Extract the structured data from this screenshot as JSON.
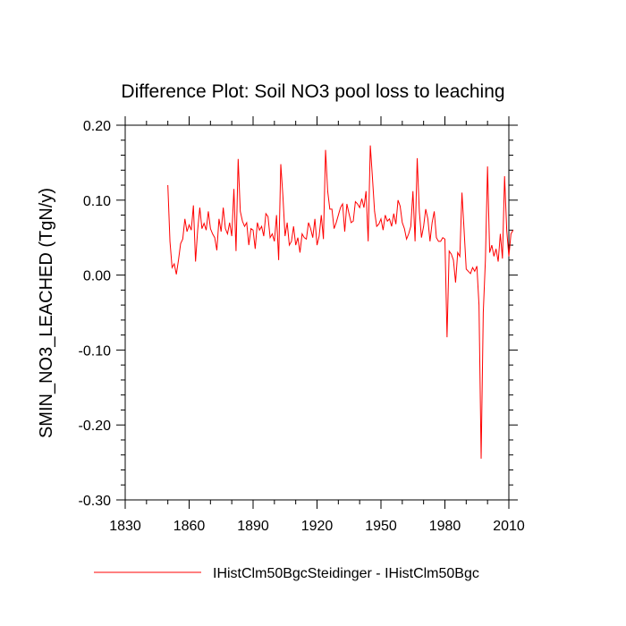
{
  "chart_data": {
    "type": "line",
    "title": "Difference Plot: Soil NO3 pool loss to leaching",
    "xlabel": "",
    "ylabel": "SMIN_NO3_LEACHED  (TgN/y)",
    "xlim": [
      1830,
      2010
    ],
    "ylim": [
      -0.3,
      0.2
    ],
    "x_ticks": [
      1830,
      1860,
      1890,
      1920,
      1950,
      1980,
      2010
    ],
    "x_tick_labels": [
      "1830",
      "1860",
      "1890",
      "1920",
      "1950",
      "1980",
      "2010"
    ],
    "y_ticks": [
      0.2,
      0.1,
      0.0,
      -0.1,
      -0.2,
      -0.3
    ],
    "y_tick_labels": [
      "0.20",
      "0.10",
      "0.00",
      "-0.10",
      "-0.20",
      "-0.30"
    ],
    "grid": false,
    "legend_position": "bottom",
    "series": [
      {
        "name": "IHistClm50BgcSteidinger - IHistClm50Bgc",
        "color": "#ff0000",
        "x_start": 1850,
        "x_step": 1,
        "values": [
          0.12,
          0.045,
          0.01,
          0.015,
          0.001,
          0.02,
          0.042,
          0.048,
          0.075,
          0.058,
          0.067,
          0.06,
          0.093,
          0.018,
          0.06,
          0.09,
          0.062,
          0.069,
          0.06,
          0.085,
          0.062,
          0.055,
          0.05,
          0.033,
          0.075,
          0.058,
          0.09,
          0.062,
          0.055,
          0.07,
          0.052,
          0.115,
          0.032,
          0.155,
          0.085,
          0.072,
          0.065,
          0.07,
          0.04,
          0.062,
          0.06,
          0.035,
          0.07,
          0.06,
          0.065,
          0.052,
          0.082,
          0.078,
          0.05,
          0.055,
          0.045,
          0.08,
          0.02,
          0.148,
          0.105,
          0.052,
          0.07,
          0.04,
          0.045,
          0.065,
          0.04,
          0.05,
          0.03,
          0.055,
          0.05,
          0.048,
          0.07,
          0.062,
          0.05,
          0.075,
          0.04,
          0.052,
          0.08,
          0.048,
          0.167,
          0.112,
          0.088,
          0.088,
          0.062,
          0.07,
          0.08,
          0.09,
          0.095,
          0.058,
          0.095,
          0.082,
          0.07,
          0.072,
          0.098,
          0.095,
          0.09,
          0.102,
          0.09,
          0.112,
          0.045,
          0.173,
          0.13,
          0.085,
          0.065,
          0.068,
          0.075,
          0.06,
          0.08,
          0.072,
          0.075,
          0.065,
          0.082,
          0.068,
          0.1,
          0.092,
          0.07,
          0.062,
          0.048,
          0.055,
          0.065,
          0.112,
          0.045,
          0.156,
          0.085,
          0.05,
          0.065,
          0.088,
          0.075,
          0.045,
          0.07,
          0.085,
          0.05,
          0.045,
          0.045,
          0.05,
          0.048,
          -0.083,
          0.032,
          0.028,
          0.02,
          -0.01,
          0.03,
          0.025,
          0.11,
          0.06,
          0.008,
          0.005,
          0.002,
          0.01,
          0.005,
          0.012,
          -0.04,
          -0.245,
          -0.05,
          0.02,
          0.145,
          0.03,
          0.04,
          0.025,
          0.035,
          0.018,
          0.055,
          0.022,
          0.132,
          0.06,
          0.025,
          0.055,
          0.06
        ]
      }
    ]
  }
}
